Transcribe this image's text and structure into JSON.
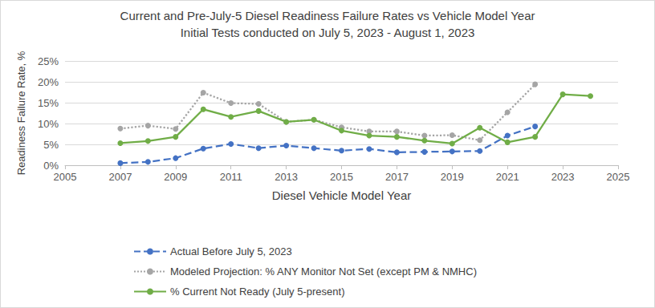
{
  "chart_data": {
    "type": "line",
    "title": "Current and Pre-July-5 Diesel Readiness Failure Rates vs Vehicle Model Year",
    "subtitle": "Initial Tests conducted on July 5, 2023 - August 1, 2023",
    "x_label": "Diesel Vehicle Model Year",
    "y_label": "Readiness Failure Rate, %",
    "x": [
      2007,
      2008,
      2009,
      2010,
      2011,
      2012,
      2013,
      2014,
      2015,
      2016,
      2017,
      2018,
      2019,
      2020,
      2021,
      2022,
      2023,
      2024
    ],
    "series": [
      {
        "name": "Actual Before July 5, 2023",
        "color": "#4472c4",
        "line_style": "dashed",
        "marker": "circle",
        "values": [
          0.5,
          0.8,
          1.7,
          4.0,
          5.1,
          4.1,
          4.7,
          4.1,
          3.5,
          3.9,
          3.1,
          3.2,
          3.3,
          3.4,
          7.1,
          9.3,
          null,
          null
        ]
      },
      {
        "name": "Modeled Projection: % ANY Monitor Not Set (except PM & NMHC)",
        "color": "#a5a5a5",
        "line_style": "dotted",
        "marker": "circle",
        "values": [
          8.8,
          9.5,
          8.7,
          17.4,
          14.9,
          14.7,
          10.4,
          10.9,
          9.1,
          8.1,
          8.1,
          7.1,
          7.2,
          6.0,
          12.7,
          19.4,
          null,
          null
        ]
      },
      {
        "name": "% Current Not Ready (July 5-present)",
        "color": "#70ad47",
        "line_style": "solid",
        "marker": "circle",
        "values": [
          5.3,
          5.8,
          6.8,
          13.4,
          11.6,
          13.0,
          10.4,
          10.9,
          8.3,
          7.1,
          6.8,
          5.9,
          5.2,
          9.0,
          5.5,
          6.8,
          17.0,
          16.6
        ]
      }
    ],
    "xlim": [
      2005,
      2025
    ],
    "xticks": [
      2005,
      2007,
      2009,
      2011,
      2013,
      2015,
      2017,
      2019,
      2021,
      2023,
      2025
    ],
    "ylim": [
      0,
      25
    ],
    "yticks": [
      {
        "value": 0,
        "label": "0%"
      },
      {
        "value": 5,
        "label": "5%"
      },
      {
        "value": 10,
        "label": "10%"
      },
      {
        "value": 15,
        "label": "15%"
      },
      {
        "value": 20,
        "label": "20%"
      },
      {
        "value": 25,
        "label": "25%"
      }
    ],
    "grid": true,
    "legend": "bottom"
  }
}
